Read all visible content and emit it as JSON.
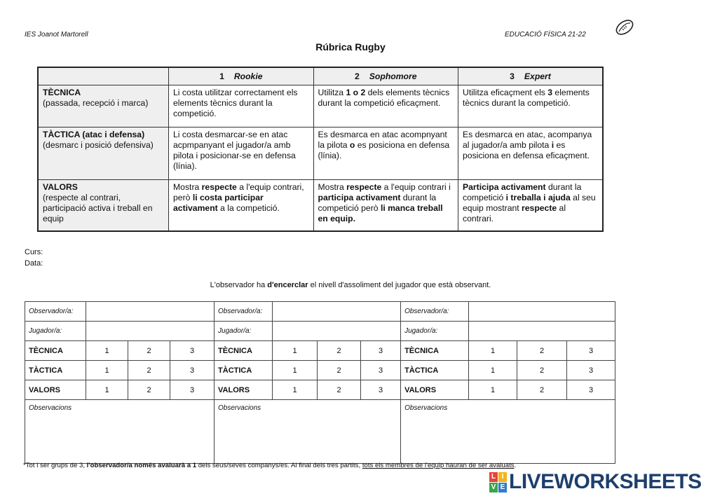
{
  "header": {
    "school": "IES Joanot Martorell",
    "subject": "EDUCACIÓ FÍSICA 21-22",
    "title": "Rúbrica Rugby",
    "icon": "rugby-ball-icon"
  },
  "rubric": {
    "levels": [
      {
        "num": "1",
        "name": "Rookie"
      },
      {
        "num": "2",
        "name": "Sophomore"
      },
      {
        "num": "3",
        "name": "Expert"
      }
    ],
    "rows": [
      {
        "name": "TÈCNICA",
        "sub": "(passada, recepció i marca)",
        "cells": [
          [
            {
              "t": "Li costa utilitzar correctament els elements tècnics durant la competició."
            }
          ],
          [
            {
              "t": "Utilitza "
            },
            {
              "t": "1 o 2",
              "b": true
            },
            {
              "t": " dels elements tècnics durant la competició eficaçment."
            }
          ],
          [
            {
              "t": "Utilitza eficaçment els "
            },
            {
              "t": "3",
              "b": true
            },
            {
              "t": " elements tècnics durant la competició."
            }
          ]
        ]
      },
      {
        "name": "TÀCTICA (atac i defensa)",
        "sub": "(desmarc i posició defensiva)",
        "cells": [
          [
            {
              "t": "Li costa desmarcar-se en atac acpmpanyant el jugador/a amb pilota i posicionar-se en defensa (línia)."
            }
          ],
          [
            {
              "t": "Es desmarca en atac acompnyant la pilota "
            },
            {
              "t": "o",
              "b": true
            },
            {
              "t": " es posiciona en defensa (línia)."
            }
          ],
          [
            {
              "t": "Es desmarca en atac, acompanya al jugador/a amb pilota  "
            },
            {
              "t": "i",
              "b": true
            },
            {
              "t": " es posiciona en defensa eficaçment."
            }
          ]
        ]
      },
      {
        "name": "VALORS",
        "sub": "(respecte al contrari, participació activa i treball en equip",
        "cells": [
          [
            {
              "t": "Mostra "
            },
            {
              "t": "respecte",
              "b": true
            },
            {
              "t": " a l'equip contrari, però "
            },
            {
              "t": "li costa participar activament",
              "b": true
            },
            {
              "t": " a la competició."
            }
          ],
          [
            {
              "t": "Mostra "
            },
            {
              "t": "respecte",
              "b": true
            },
            {
              "t": " a l'equip contrari i "
            },
            {
              "t": "participa activament",
              "b": true
            },
            {
              "t": " durant la competició però "
            },
            {
              "t": "li manca treball en equip.",
              "b": true
            }
          ],
          [
            {
              "t": "Participa activament",
              "b": true
            },
            {
              "t": " durant la competició "
            },
            {
              "t": "i treballa i ajuda",
              "b": true
            },
            {
              "t": " al seu equip mostrant "
            },
            {
              "t": "respecte",
              "b": true
            },
            {
              "t": " al contrari."
            }
          ]
        ]
      }
    ]
  },
  "form": {
    "curs": "Curs:",
    "data": "Data:"
  },
  "instruction": [
    {
      "t": "L'observador ha "
    },
    {
      "t": "d'encerclar",
      "b": true
    },
    {
      "t": " el nivell d'assoliment del jugador que està observant."
    }
  ],
  "evaluation": {
    "observer_label": "Observador/a:",
    "player_label": "Jugador/a:",
    "criteria": [
      "TÈCNICA",
      "TÀCTICA",
      "VALORS"
    ],
    "scores": [
      "1",
      "2",
      "3"
    ],
    "observations_label": "Observacions",
    "blocks": 3
  },
  "footnote": [
    {
      "t": "*Tot i ser grups de 3, "
    },
    {
      "t": "l'observador/a només avaluarà a 1",
      "b": true
    },
    {
      "t": " dels seus/seves companys/es. Al final dels tres partits, "
    },
    {
      "t": "tots els membres de l'equip hauran de ser avaluats",
      "u": true
    },
    {
      "t": "."
    }
  ],
  "logo": {
    "text": "LIVEWORKSHEETS",
    "letters": [
      "L",
      "I",
      "V",
      "E"
    ],
    "colors": [
      "#e8423a",
      "#f3b51b",
      "#3aa54a",
      "#2c7dd1"
    ]
  }
}
